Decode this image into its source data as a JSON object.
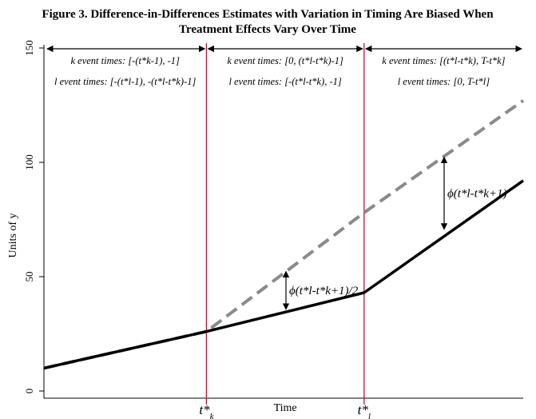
{
  "title": {
    "line1": "Figure 3. Difference-in-Differences Estimates with Variation in Timing Are Biased When",
    "line2": "Treatment Effects Vary Over Time"
  },
  "chart_data": {
    "type": "line",
    "title": "Figure 3. Difference-in-Differences Estimates with Variation in Timing Are Biased When Treatment Effects Vary Over Time",
    "xlabel": "Time",
    "ylabel": "Units of y",
    "xlim": [
      0,
      100
    ],
    "ylim": [
      0,
      150
    ],
    "y_ticks": [
      0,
      50,
      100,
      150
    ],
    "grid": false,
    "legend": "none",
    "series": [
      {
        "style": "dashed",
        "color": "#8a8a8a",
        "x": [
          0,
          33.9,
          66.8,
          100
        ],
        "y": [
          10,
          26,
          78,
          127
        ]
      },
      {
        "style": "solid",
        "color": "#000000",
        "x": [
          0,
          33.9,
          66.8,
          100
        ],
        "y": [
          10,
          26,
          43,
          92
        ]
      }
    ],
    "vertical_lines": [
      {
        "x": 33.9,
        "color": "#c8102e",
        "label": "t*_k"
      },
      {
        "x": 66.8,
        "color": "#c8102e",
        "label": "t*_l"
      }
    ],
    "x_tick_labels": [
      {
        "x": 33.9,
        "base": "t*",
        "sub": "k"
      },
      {
        "x": 66.8,
        "base": "t*",
        "sub": "l"
      }
    ],
    "regions": [
      {
        "x_from": 0,
        "x_to": 33.9,
        "k_text": "k event times: [-(t*k-1), -1]",
        "l_text": "l event times: [-(t*l-1), -(t*l-t*k)-1]"
      },
      {
        "x_from": 33.9,
        "x_to": 66.8,
        "k_text": "k event times: [0, (t*l-t*k)-1]",
        "l_text": "l event times: [-(t*l-t*k), -1]"
      },
      {
        "x_from": 66.8,
        "x_to": 100,
        "k_text": "k event times: [(t*l-t*k), T-t*k]",
        "l_text": "l event times: [0, T-t*l]"
      }
    ],
    "annotations": [
      {
        "x": 50.5,
        "y_from": 35,
        "y_to": 53,
        "text": "ϕ(t*l-t*k+1)/2"
      },
      {
        "x": 83.5,
        "y_from": 70,
        "y_to": 103,
        "text": "ϕ(t*l-t*k+1)"
      }
    ]
  }
}
